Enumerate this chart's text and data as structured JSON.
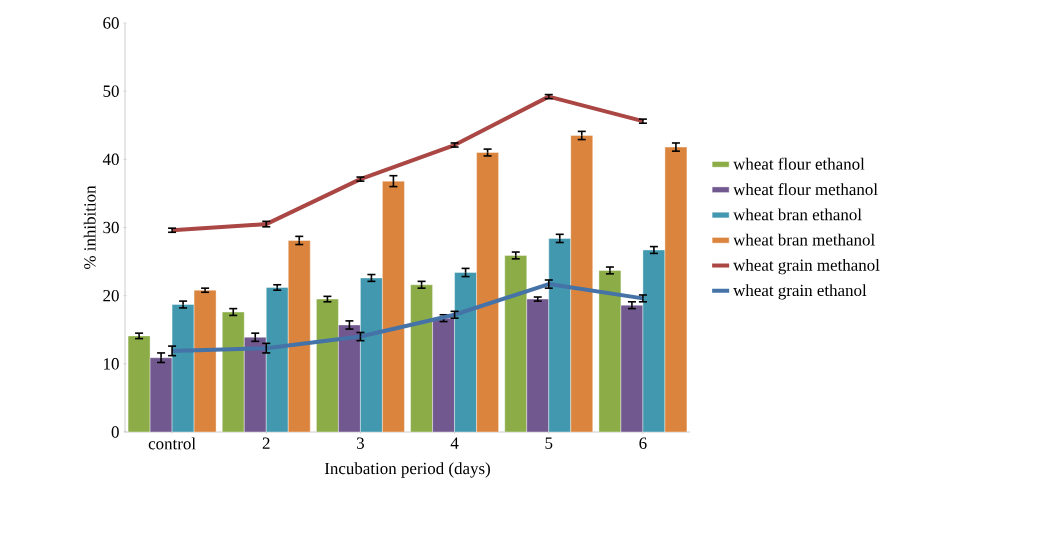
{
  "chart_data": {
    "type": "bar",
    "xlabel": "Incubation period (days)",
    "ylabel": "% inhibition",
    "categories": [
      "control",
      "2",
      "3",
      "4",
      "5",
      "6"
    ],
    "series": [
      {
        "name": "wheat flour ethanol",
        "color": "#8bac46",
        "values": [
          14.1,
          17.6,
          19.5,
          21.6,
          25.9,
          23.7
        ],
        "errors": [
          0.4,
          0.5,
          0.4,
          0.5,
          0.5,
          0.5
        ]
      },
      {
        "name": "wheat flour methanol",
        "color": "#71588f",
        "values": [
          10.9,
          13.9,
          15.7,
          16.7,
          19.5,
          18.6
        ],
        "errors": [
          0.7,
          0.6,
          0.6,
          0.5,
          0.3,
          0.5
        ]
      },
      {
        "name": "wheat bran ethanol",
        "color": "#4198af",
        "values": [
          18.7,
          21.2,
          22.6,
          23.4,
          28.4,
          26.7
        ],
        "errors": [
          0.5,
          0.4,
          0.5,
          0.6,
          0.6,
          0.5
        ]
      },
      {
        "name": "wheat bran methanol",
        "color": "#db843d",
        "values": [
          20.8,
          28.1,
          36.8,
          41.0,
          43.5,
          41.8
        ],
        "errors": [
          0.3,
          0.6,
          0.8,
          0.5,
          0.6,
          0.6
        ]
      },
      {
        "name": "wheat grain methanol",
        "type": "line",
        "color": "#aa4643",
        "values": [
          29.6,
          30.5,
          37.1,
          42.1,
          49.2,
          45.6
        ],
        "errors": [
          0.3,
          0.4,
          0.3,
          0.3,
          0.3,
          0.3
        ]
      },
      {
        "name": "wheat grain ethanol",
        "type": "line",
        "color": "#4572a7",
        "values": [
          11.9,
          12.3,
          14.0,
          17.2,
          21.7,
          19.6
        ],
        "errors": [
          0.7,
          0.7,
          0.6,
          0.5,
          0.6,
          0.5
        ]
      }
    ],
    "ylim": [
      0,
      60
    ],
    "yticks": [
      0,
      10,
      20,
      30,
      40,
      50,
      60
    ],
    "grid": false,
    "legend": "right",
    "marker": "none"
  }
}
